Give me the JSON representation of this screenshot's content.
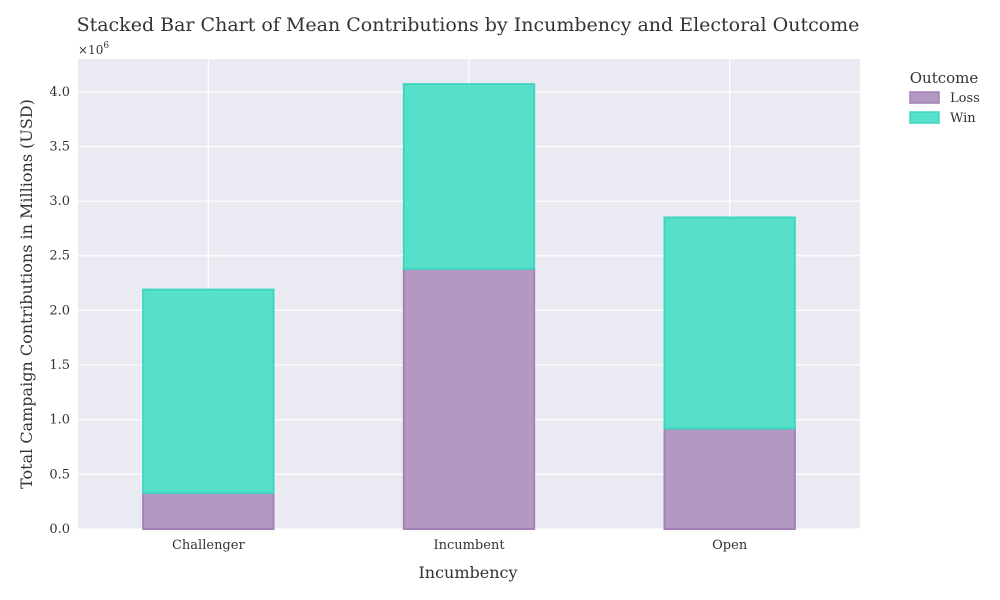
{
  "chart_data": {
    "type": "bar",
    "stacked": true,
    "title": "Stacked Bar Chart of Mean Contributions by Incumbency and Electoral Outcome",
    "xlabel": "Incumbency",
    "ylabel": "Total Campaign Contributions in Millions (USD)",
    "y_scale_label": "×10",
    "y_scale_exponent": "6",
    "categories": [
      "Challenger",
      "Incumbent",
      "Open"
    ],
    "series": [
      {
        "name": "Loss",
        "values": [
          330000,
          2380000,
          920000
        ],
        "color": "#b399c2",
        "stroke": "#a57fba"
      },
      {
        "name": "Win",
        "values": [
          1860000,
          1690000,
          1930000
        ],
        "color": "#56dfc9",
        "stroke": "#3fd6bf"
      }
    ],
    "ylim": [
      0,
      4300000
    ],
    "yticks": [
      0,
      500000,
      1000000,
      1500000,
      2000000,
      2500000,
      3000000,
      3500000,
      4000000
    ],
    "ytick_labels": [
      "0.0",
      "0.5",
      "1.0",
      "1.5",
      "2.0",
      "2.5",
      "3.0",
      "3.5",
      "4.0"
    ],
    "legend": {
      "title": "Outcome",
      "position": "outside-top-right"
    },
    "grid": true,
    "plot_background": "#eaeaf2"
  }
}
